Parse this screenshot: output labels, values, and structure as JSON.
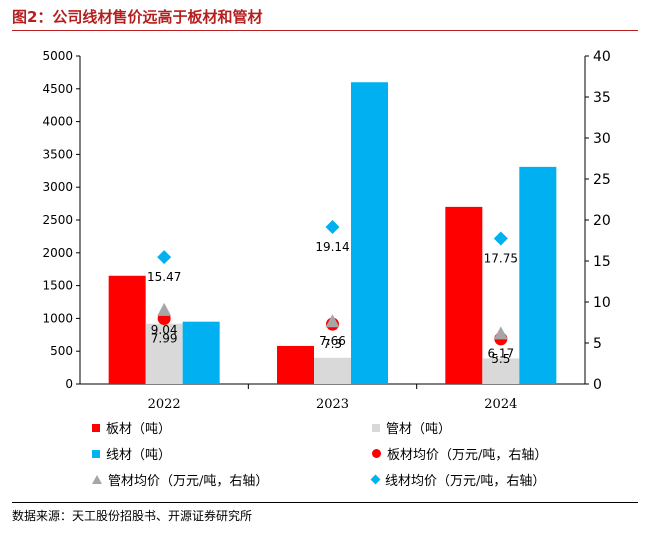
{
  "title": "图2：公司线材售价远高于板材和管材",
  "source": "数据来源：天工股份招股书、开源证券研究所",
  "chart_data": {
    "type": "bar",
    "categories": [
      "2022",
      "2023",
      "2024"
    ],
    "y_left": {
      "min": 0,
      "max": 5000,
      "ticks": [
        0,
        500,
        1000,
        1500,
        2000,
        2500,
        3000,
        3500,
        4000,
        4500,
        5000
      ]
    },
    "y_right": {
      "min": 0,
      "max": 40,
      "ticks": [
        0,
        5,
        10,
        15,
        20,
        25,
        30,
        35,
        40
      ]
    },
    "grid": false,
    "legend_position": "bottom",
    "bar_series": [
      {
        "name": "板材（吨）",
        "color": "#ff0000",
        "values": [
          1650,
          580,
          2700
        ]
      },
      {
        "name": "管材（吨）",
        "color": "#d9d9d9",
        "values": [
          920,
          400,
          390
        ]
      },
      {
        "name": "线材（吨）",
        "color": "#00b0f0",
        "values": [
          950,
          4600,
          3310
        ]
      }
    ],
    "point_series": [
      {
        "name": "板材均价（万元/吨，右轴）",
        "marker": "circle",
        "color": "#ff0000",
        "values": [
          7.99,
          7.3,
          5.5
        ],
        "labels": [
          "7.99",
          "7.3",
          "5.5"
        ]
      },
      {
        "name": "管材均价（万元/吨，右轴）",
        "marker": "triangle",
        "color": "#a6a6a6",
        "values": [
          9.04,
          7.66,
          6.17
        ],
        "labels": [
          "9.04",
          "7.66",
          "6.17"
        ]
      },
      {
        "name": "线材均价（万元/吨，右轴）",
        "marker": "diamond",
        "color": "#00b0f0",
        "values": [
          15.47,
          19.14,
          17.75
        ],
        "labels": [
          "15.47",
          "19.14",
          "17.75"
        ]
      }
    ]
  }
}
